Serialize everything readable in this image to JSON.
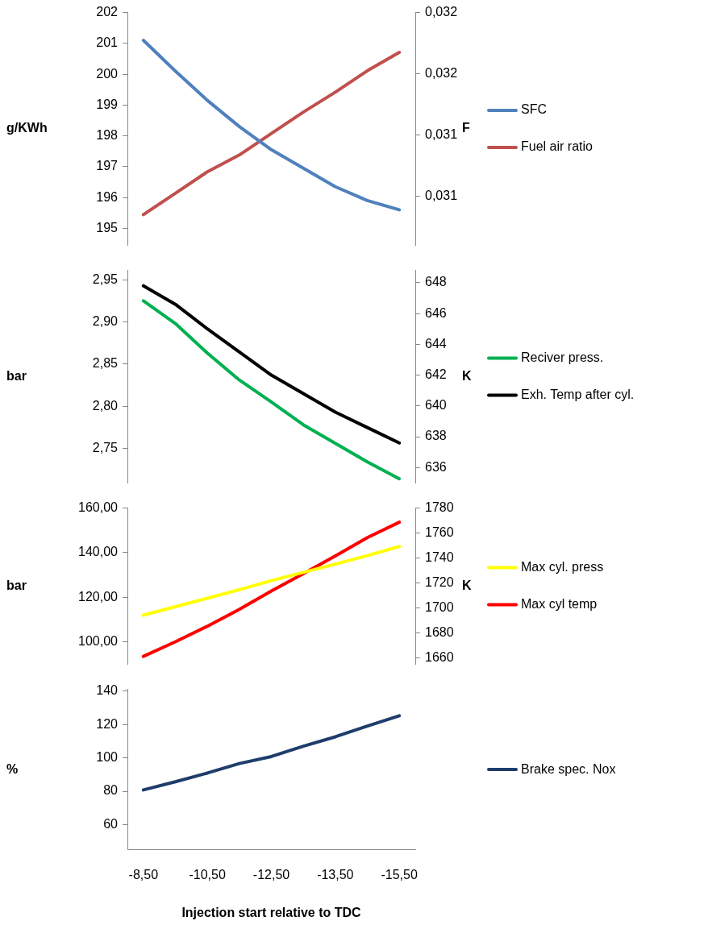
{
  "chart_data": [
    {
      "type": "line",
      "categories": [
        "-8,50",
        null,
        "-10,50",
        null,
        "-12,50",
        null,
        "-13,50",
        null,
        "-15,50"
      ],
      "ylabel": "g/KWh",
      "y2label": "F",
      "tick_labels": "y",
      "legend": "right",
      "grid": false,
      "marker": "none",
      "line_style": "solid",
      "ylim": [
        194.45,
        202
      ],
      "yticks": [
        195,
        196,
        197,
        198,
        199,
        200,
        201,
        202
      ],
      "y2lim": [
        0.03068,
        0.0322
      ],
      "y2ticks": [
        {
          "value": 0.031,
          "label": "0,031"
        },
        {
          "value": 0.0314,
          "label": "0,031"
        },
        {
          "value": 0.0318,
          "label": "0,032"
        },
        {
          "value": 0.0322,
          "label": "0,032"
        }
      ],
      "series": [
        {
          "name": "SFC",
          "color": "#4f81bd",
          "values": [
            201.1,
            200.1,
            199.15,
            198.3,
            197.55,
            196.95,
            196.35,
            195.9,
            195.6
          ]
        },
        {
          "name": "Fuel air ratio",
          "color": "#c0504d",
          "axis": "y2",
          "values": [
            0.03088,
            0.03102,
            0.03116,
            0.03127,
            0.03141,
            0.03155,
            0.03168,
            0.03182,
            0.03194
          ]
        }
      ]
    },
    {
      "type": "line",
      "categories": [
        "-8,50",
        null,
        "-10,50",
        null,
        "-12,50",
        null,
        "-13,50",
        null,
        "-15,50"
      ],
      "ylabel": "bar",
      "y2label": "K",
      "tick_labels": "y",
      "legend": "right",
      "grid": false,
      "marker": "none",
      "line_style": "solid",
      "ylim": [
        2.709,
        2.961
      ],
      "yticks": [
        {
          "value": 2.75,
          "label": "2,75"
        },
        {
          "value": 2.8,
          "label": "2,80"
        },
        {
          "value": 2.85,
          "label": "2,85"
        },
        {
          "value": 2.9,
          "label": "2,90"
        },
        {
          "value": 2.95,
          "label": "2,95"
        }
      ],
      "y2lim": [
        635,
        648.8
      ],
      "y2ticks": [
        636,
        638,
        640,
        642,
        644,
        646,
        648
      ],
      "series": [
        {
          "name": "Reciver press.",
          "color": "#00b050",
          "values": [
            2.925,
            2.898,
            2.863,
            2.831,
            2.805,
            2.778,
            2.756,
            2.734,
            2.714
          ]
        },
        {
          "name": "Exh. Temp after cyl.",
          "color": "#000000",
          "axis": "y2",
          "values": [
            647.8,
            646.6,
            645.0,
            643.5,
            642.0,
            640.8,
            639.6,
            638.6,
            637.6
          ]
        }
      ]
    },
    {
      "type": "line",
      "categories": [
        "-8,50",
        null,
        "-10,50",
        null,
        "-12,50",
        null,
        "-13,50",
        null,
        "-15,50"
      ],
      "ylabel": "bar",
      "y2label": "K",
      "tick_labels": "y",
      "legend": "right",
      "grid": false,
      "marker": "none",
      "line_style": "solid",
      "ylim": [
        90,
        160
      ],
      "yticks": [
        {
          "value": 100,
          "label": "100,00"
        },
        {
          "value": 120,
          "label": "120,00"
        },
        {
          "value": 140,
          "label": "140,00"
        },
        {
          "value": 160,
          "label": "160,00"
        }
      ],
      "y2lim": [
        1655,
        1780
      ],
      "y2ticks": [
        1660,
        1680,
        1700,
        1720,
        1740,
        1760,
        1780
      ],
      "series": [
        {
          "name": "Max cyl. press",
          "color": "#ffff00",
          "values": [
            112,
            115.8,
            119.6,
            123.4,
            127.5,
            131.2,
            134.9,
            138.7,
            142.8
          ]
        },
        {
          "name": "Max cyl temp",
          "color": "#ff0000",
          "axis": "y2",
          "values": [
            1661.3,
            1673,
            1685.4,
            1698.9,
            1713.6,
            1727.5,
            1741.7,
            1756.4,
            1768.7
          ]
        }
      ]
    },
    {
      "type": "line",
      "categories": [
        "-8,50",
        null,
        "-10,50",
        null,
        "-12,50",
        null,
        "-13,50",
        null,
        "-15,50"
      ],
      "ylabel": "%",
      "xlabel": "Injection start relative to TDC",
      "legend": "right",
      "grid": false,
      "marker": "none",
      "line_style": "solid",
      "ylim": [
        45,
        141
      ],
      "yticks": [
        60,
        80,
        100,
        120,
        140
      ],
      "series": [
        {
          "name": "Brake spec. Nox",
          "color": "#1f3d6b",
          "values": [
            80.8,
            85.7,
            90.9,
            96.6,
            100.8,
            107.0,
            112.6,
            119.0,
            125.2
          ]
        }
      ]
    }
  ]
}
